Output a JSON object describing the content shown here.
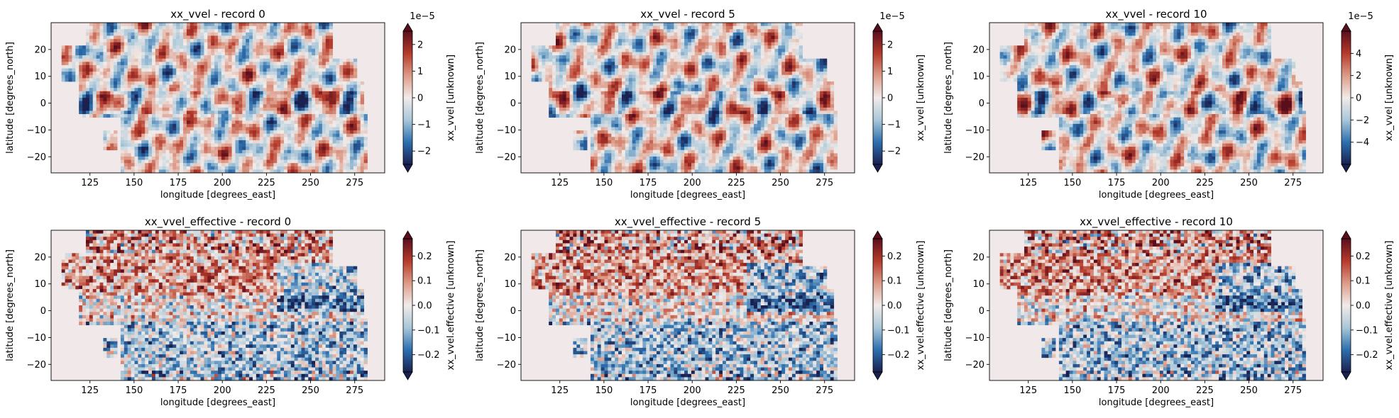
{
  "chart_data": [
    {
      "type": "heatmap",
      "title": "xx_vvel - record 0",
      "xlabel": "longitude [degrees_east]",
      "ylabel": "latitude [degrees_north]",
      "xlim": [
        103,
        292
      ],
      "ylim": [
        -26,
        30
      ],
      "xticks": [
        125,
        150,
        175,
        200,
        225,
        250,
        275
      ],
      "yticks": [
        -20,
        -10,
        0,
        10,
        20
      ],
      "colorbar": {
        "label": "xx_vvel [unknown]",
        "min": -2.5,
        "max": 2.5,
        "ticks": [
          -2,
          -1,
          0,
          1,
          2
        ],
        "tick_labels": [
          "−2",
          "−1",
          "0",
          "1",
          "2"
        ],
        "scale_label": "1e−5",
        "extend": "both"
      },
      "field": "smooth"
    },
    {
      "type": "heatmap",
      "title": "xx_vvel - record 5",
      "xlabel": "longitude [degrees_east]",
      "ylabel": "latitude [degrees_north]",
      "xlim": [
        103,
        292
      ],
      "ylim": [
        -26,
        30
      ],
      "xticks": [
        125,
        150,
        175,
        200,
        225,
        250,
        275
      ],
      "yticks": [
        -20,
        -10,
        0,
        10,
        20
      ],
      "colorbar": {
        "label": "xx_vvel [unknown]",
        "min": -2.5,
        "max": 2.5,
        "ticks": [
          -2,
          -1,
          0,
          1,
          2
        ],
        "tick_labels": [
          "−2",
          "−1",
          "0",
          "1",
          "2"
        ],
        "scale_label": "1e−5",
        "extend": "both"
      },
      "field": "smooth"
    },
    {
      "type": "heatmap",
      "title": "xx_vvel - record 10",
      "xlabel": "longitude [degrees_east]",
      "ylabel": "latitude [degrees_north]",
      "xlim": [
        103,
        292
      ],
      "ylim": [
        -26,
        30
      ],
      "xticks": [
        125,
        150,
        175,
        200,
        225,
        250,
        275
      ],
      "yticks": [
        -20,
        -10,
        0,
        10,
        20
      ],
      "colorbar": {
        "label": "xx_vvel [unknown]",
        "min": -6,
        "max": 6,
        "ticks": [
          -4,
          -2,
          0,
          2,
          4
        ],
        "tick_labels": [
          "−4",
          "−2",
          "0",
          "2",
          "4"
        ],
        "scale_label": "1e−5",
        "extend": "both"
      },
      "field": "smooth"
    },
    {
      "type": "heatmap",
      "title": "xx_vvel_effective - record 0",
      "xlabel": "longitude [degrees_east]",
      "ylabel": "latitude [degrees_north]",
      "xlim": [
        103,
        292
      ],
      "ylim": [
        -26,
        30
      ],
      "xticks": [
        125,
        150,
        175,
        200,
        225,
        250,
        275
      ],
      "yticks": [
        -20,
        -10,
        0,
        10,
        20
      ],
      "colorbar": {
        "label": "xx_vvel.effective [unknown]",
        "min": -0.27,
        "max": 0.27,
        "ticks": [
          -0.2,
          -0.1,
          0,
          0.1,
          0.2
        ],
        "tick_labels": [
          "−0.2",
          "−0.1",
          "0.0",
          "0.1",
          "0.2"
        ],
        "scale_label": "",
        "extend": "both"
      },
      "field": "noisy"
    },
    {
      "type": "heatmap",
      "title": "xx_vvel_effective - record 5",
      "xlabel": "longitude [degrees_east]",
      "ylabel": "latitude [degrees_north]",
      "xlim": [
        103,
        292
      ],
      "ylim": [
        -26,
        30
      ],
      "xticks": [
        125,
        150,
        175,
        200,
        225,
        250,
        275
      ],
      "yticks": [
        -20,
        -10,
        0,
        10,
        20
      ],
      "colorbar": {
        "label": "xx_vvel.effective [unknown]",
        "min": -0.27,
        "max": 0.27,
        "ticks": [
          -0.2,
          -0.1,
          0,
          0.1,
          0.2
        ],
        "tick_labels": [
          "−0.2",
          "−0.1",
          "0.0",
          "0.1",
          "0.2"
        ],
        "scale_label": "",
        "extend": "both"
      },
      "field": "noisy"
    },
    {
      "type": "heatmap",
      "title": "xx_vvel_effective - record 10",
      "xlabel": "longitude [degrees_east]",
      "ylabel": "latitude [degrees_north]",
      "xlim": [
        103,
        292
      ],
      "ylim": [
        -26,
        30
      ],
      "xticks": [
        125,
        150,
        175,
        200,
        225,
        250,
        275
      ],
      "yticks": [
        -20,
        -10,
        0,
        10,
        20
      ],
      "colorbar": {
        "label": "xx_vvel.effective [unknown]",
        "min": -0.27,
        "max": 0.27,
        "ticks": [
          -0.2,
          -0.1,
          0,
          0.1,
          0.2
        ],
        "tick_labels": [
          "−0.2",
          "−0.1",
          "0.0",
          "0.1",
          "0.2"
        ],
        "scale_label": "",
        "extend": "both"
      },
      "field": "noisy"
    }
  ],
  "colors": {
    "colormap_low": "#1a2150",
    "colormap_mid_low": "#2d6fae",
    "colormap_light_low": "#a9c7d9",
    "colormap_mid": "#f1ebe9",
    "colormap_light_high": "#dd9b88",
    "colormap_mid_high": "#b53a2b",
    "colormap_high": "#5a0e1d",
    "land": "#f1e9e9"
  }
}
